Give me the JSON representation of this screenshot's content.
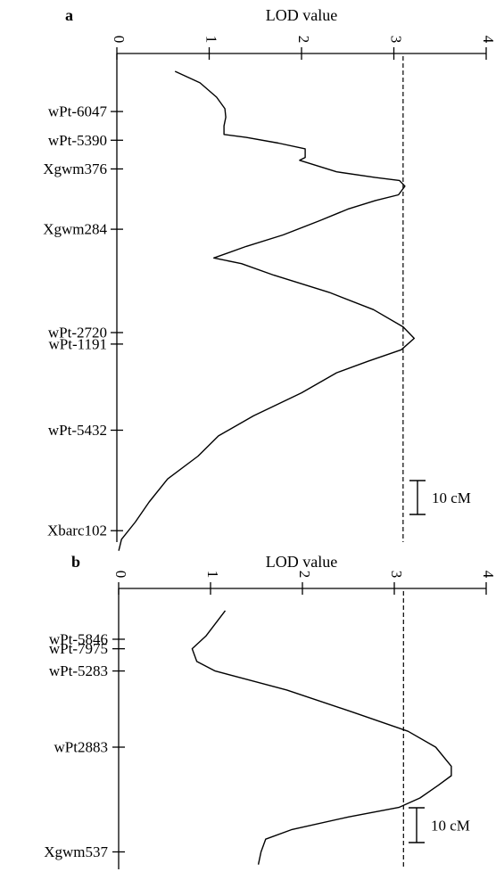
{
  "chart_data": [
    {
      "type": "line",
      "panel_label": "a",
      "title": "LOD value",
      "xlim": [
        0,
        4
      ],
      "x_ticks": [
        "0",
        "1",
        "2",
        "3",
        "4"
      ],
      "threshold": 3.1,
      "scale_bar": "10 cM",
      "markers": [
        "wPt-6047",
        "wPt-5390",
        "Xgwm376",
        "Xgwm284",
        "wPt-2720",
        "wPt-1191",
        "wPt-5432",
        "Xbarc102"
      ],
      "marker_positions_cM": [
        14,
        24,
        34,
        55,
        91,
        95,
        125,
        160
      ],
      "lod_profile": [
        [
          0.63,
          0
        ],
        [
          0.9,
          4
        ],
        [
          1.08,
          9
        ],
        [
          1.17,
          13
        ],
        [
          1.18,
          16
        ],
        [
          1.16,
          19
        ],
        [
          1.16,
          22
        ],
        [
          1.4,
          23
        ],
        [
          1.75,
          25
        ],
        [
          2.04,
          27
        ],
        [
          2.04,
          30
        ],
        [
          1.98,
          31
        ],
        [
          2.38,
          35
        ],
        [
          2.8,
          37
        ],
        [
          3.06,
          38
        ],
        [
          3.12,
          40
        ],
        [
          3.05,
          43
        ],
        [
          2.8,
          45
        ],
        [
          2.5,
          48
        ],
        [
          2.2,
          52
        ],
        [
          1.8,
          57
        ],
        [
          1.4,
          61
        ],
        [
          1.05,
          65
        ],
        [
          1.35,
          67
        ],
        [
          1.7,
          71
        ],
        [
          2.3,
          77
        ],
        [
          2.78,
          83
        ],
        [
          3.1,
          89
        ],
        [
          3.22,
          93
        ],
        [
          3.08,
          97
        ],
        [
          2.72,
          101
        ],
        [
          2.38,
          105
        ],
        [
          2.0,
          112
        ],
        [
          1.48,
          120
        ],
        [
          1.1,
          127
        ],
        [
          0.88,
          134
        ],
        [
          0.55,
          142
        ],
        [
          0.35,
          150
        ],
        [
          0.2,
          157
        ],
        [
          0.05,
          163
        ],
        [
          0.02,
          167
        ]
      ]
    },
    {
      "type": "line",
      "panel_label": "b",
      "title": "LOD value",
      "xlim": [
        0,
        4
      ],
      "x_ticks": [
        "0",
        "1",
        "2",
        "3",
        "4"
      ],
      "threshold": 3.1,
      "scale_bar": "10 cM",
      "markers": [
        "wPt-5846",
        "wPt-7975",
        "wPt-5283",
        "wPt2883",
        "Xgwm537"
      ],
      "marker_positions_cM": [
        16,
        19,
        26,
        50,
        83
      ],
      "lod_profile": [
        [
          1.16,
          7
        ],
        [
          0.95,
          15
        ],
        [
          0.8,
          19
        ],
        [
          0.85,
          23
        ],
        [
          1.05,
          26
        ],
        [
          1.83,
          32
        ],
        [
          2.55,
          39
        ],
        [
          3.15,
          45
        ],
        [
          3.45,
          50
        ],
        [
          3.62,
          56
        ],
        [
          3.62,
          59
        ],
        [
          3.48,
          62
        ],
        [
          3.28,
          66
        ],
        [
          3.05,
          69
        ],
        [
          2.5,
          72
        ],
        [
          1.88,
          76
        ],
        [
          1.6,
          79
        ],
        [
          1.55,
          83
        ],
        [
          1.52,
          87
        ]
      ]
    }
  ]
}
